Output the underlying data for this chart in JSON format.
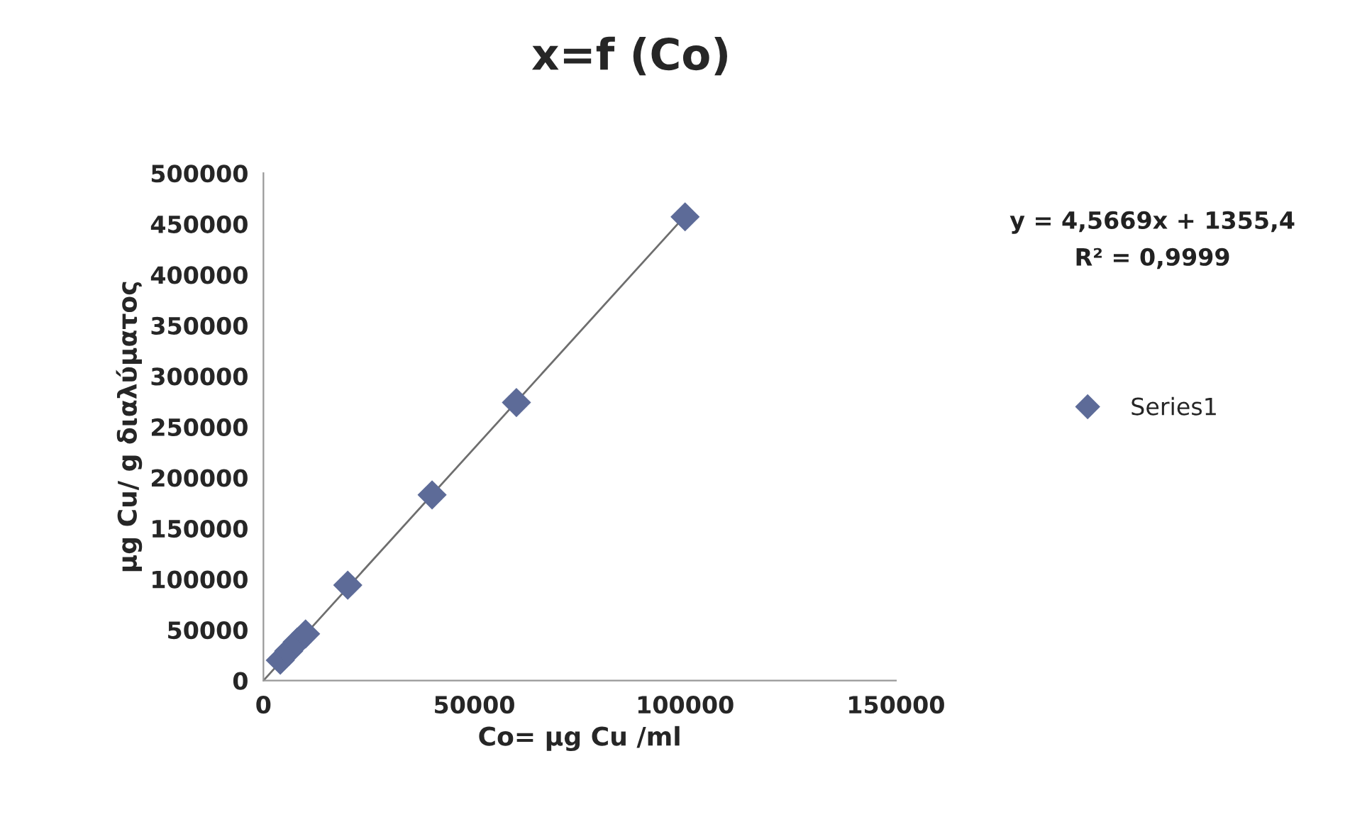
{
  "chart_data": {
    "type": "scatter",
    "title": "x=f (Co)",
    "xlabel": "Co= μg Cu /ml",
    "ylabel": "μg Cu/ g διαλύματος",
    "series": [
      {
        "name": "Series1",
        "color": "#5d6b98",
        "x": [
          4000,
          6000,
          8000,
          10000,
          20000,
          40000,
          60000,
          100000
        ],
        "values": [
          20000,
          29000,
          38000,
          46000,
          94000,
          183000,
          274000,
          457000
        ]
      },
      {
        "type": "line",
        "marker": "none",
        "color": "#6e6e6e",
        "x": [
          0,
          100000
        ],
        "values": [
          0,
          458000
        ]
      }
    ],
    "annotations": [
      "y = 4,5669x + 1355,4",
      "R² = 0,9999"
    ],
    "xlim": [
      0,
      150000
    ],
    "xticks": [
      0,
      50000,
      100000,
      150000
    ],
    "ylim": [
      0,
      500000
    ],
    "yticks": [
      0,
      50000,
      100000,
      150000,
      200000,
      250000,
      300000,
      350000,
      400000,
      450000,
      500000
    ],
    "marker": "diamond",
    "grid": false,
    "legend": "right"
  }
}
